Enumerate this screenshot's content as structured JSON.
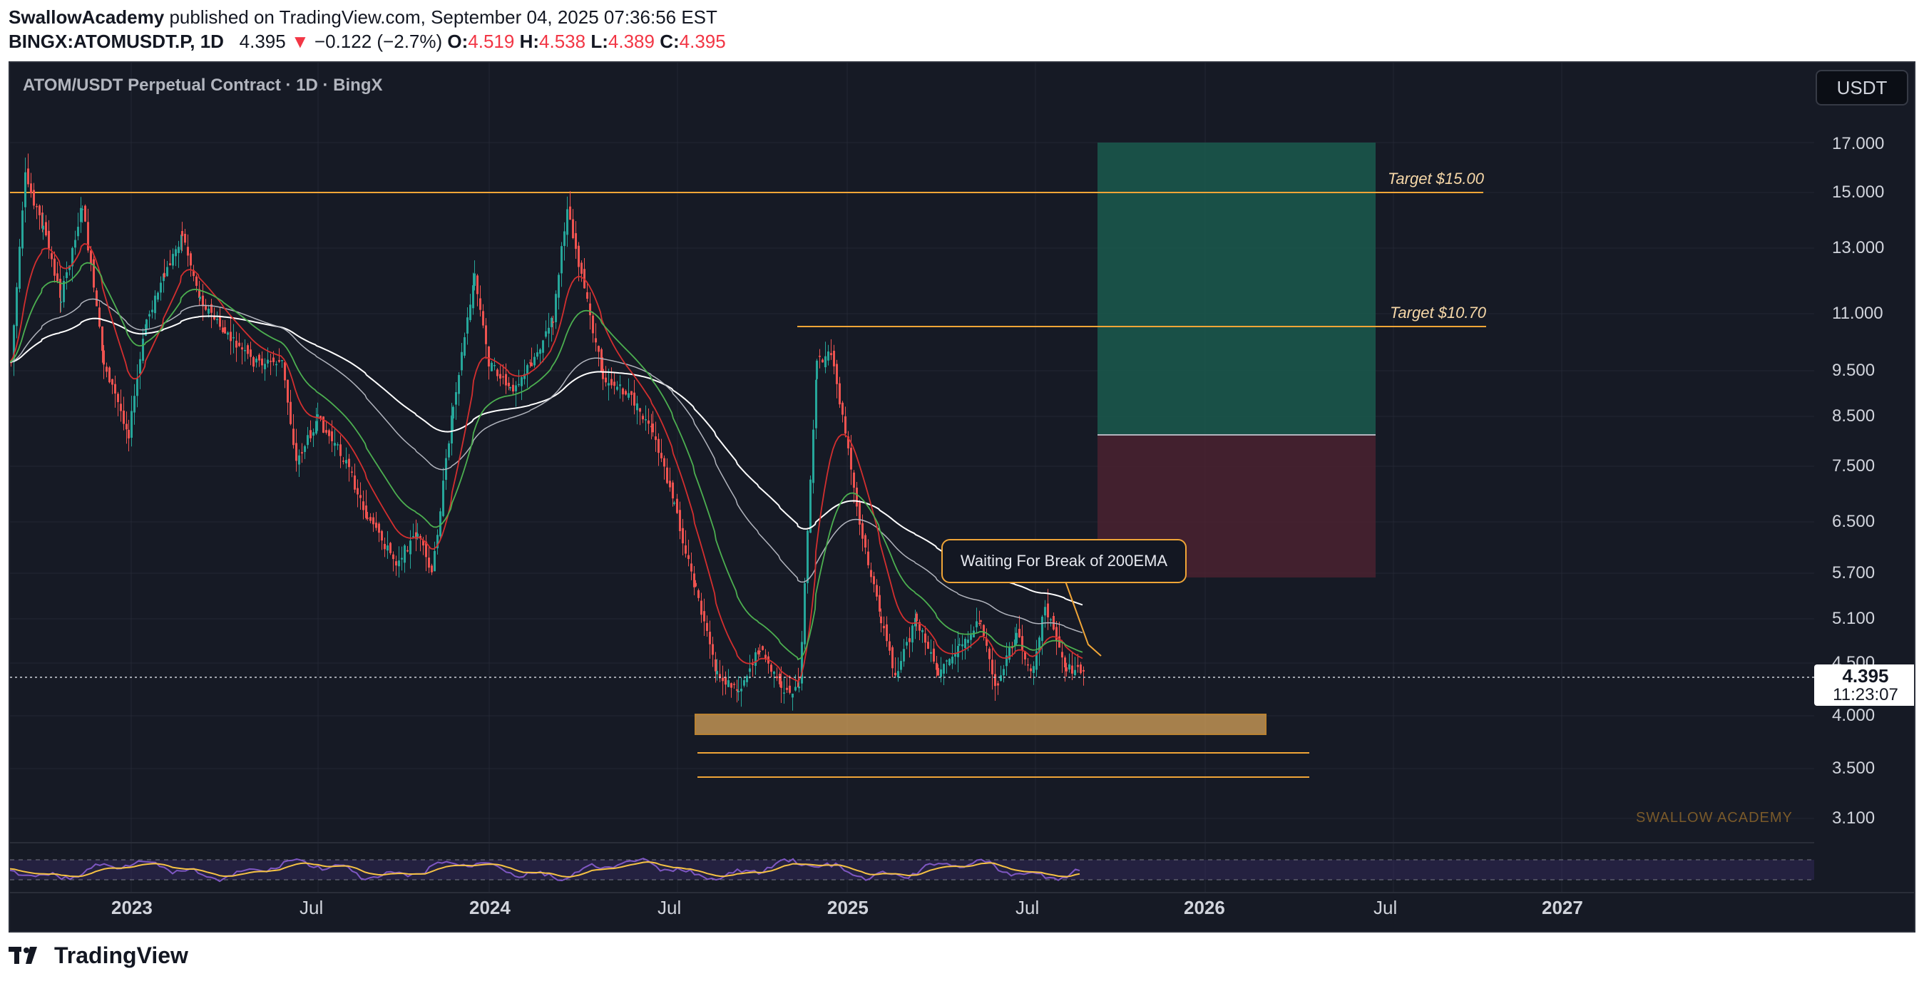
{
  "header": {
    "author": "SwallowAcademy",
    "published_text": "published on TradingView.com, September 04, 2025 07:36:56 EST",
    "symbol": "BINGX:ATOMUSDT.P, 1D",
    "last": "4.395",
    "change_arrow": "▼",
    "change": "−0.122 (−2.7%)",
    "o_label": "O:",
    "o": "4.519",
    "h_label": "H:",
    "h": "4.538",
    "l_label": "L:",
    "l": "4.389",
    "c_label": "C:",
    "c": "4.395"
  },
  "chart": {
    "title": "ATOM/USDT Perpetual Contract · 1D · BingX",
    "currency": "USDT",
    "current_price": "4.395",
    "countdown": "11:23:07",
    "annotation": "Waiting For Break of 200EMA",
    "targets": [
      {
        "label": "Target $15.00",
        "price": 15.0
      },
      {
        "label": "Target $10.70",
        "price": 10.7
      }
    ],
    "watermark": "SWALLOW ACADEMY",
    "price_axis": [
      "17.000",
      "15.000",
      "13.000",
      "11.000",
      "9.500",
      "8.500",
      "7.500",
      "6.500",
      "5.700",
      "5.100",
      "4.500",
      "4.000",
      "3.500",
      "3.100"
    ],
    "time_axis": [
      {
        "label": "2023",
        "year": true
      },
      {
        "label": "Jul",
        "year": false
      },
      {
        "label": "2024",
        "year": true
      },
      {
        "label": "Jul",
        "year": false
      },
      {
        "label": "2025",
        "year": true
      },
      {
        "label": "Jul",
        "year": false
      },
      {
        "label": "2026",
        "year": true
      },
      {
        "label": "Jul",
        "year": false
      },
      {
        "label": "2027",
        "year": true
      }
    ],
    "colors": {
      "background": "#161a25",
      "profit_zone": "#1a5a4e",
      "loss_zone": "#4a2230",
      "target_line": "#f0a537",
      "support_zone": "#d7a35a",
      "candle_up": "#26a69a",
      "candle_down": "#ef5350",
      "ema_fast": "#d32f2f",
      "ema_mid": "#4caf50",
      "rsi_line": "#7e57c2",
      "rsi_signal": "#f6c244"
    }
  },
  "footer": {
    "brand": "TradingView"
  }
}
